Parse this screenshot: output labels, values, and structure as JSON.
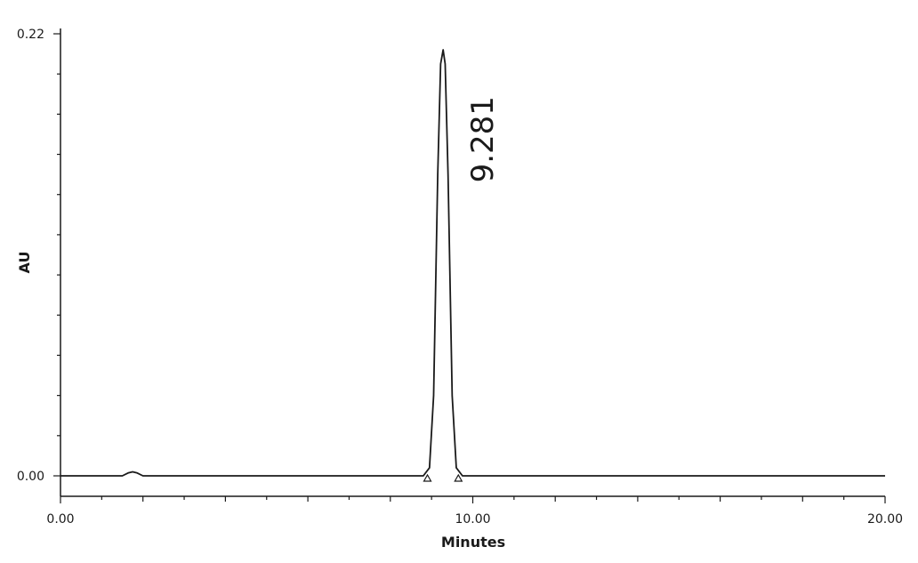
{
  "chart_data": {
    "type": "line",
    "title": "",
    "xlabel": "Minutes",
    "ylabel": "AU",
    "xlim": [
      0,
      20
    ],
    "ylim": [
      0,
      0.22
    ],
    "x_ticks": [
      "0.00",
      "10.00",
      "20.00"
    ],
    "y_ticks": [
      "0.00",
      "0.22"
    ],
    "grid": false,
    "series": [
      {
        "x": [
          0,
          1.5,
          1.65,
          1.75,
          1.85,
          2.0,
          8.8,
          8.95,
          9.05,
          9.15,
          9.22,
          9.281,
          9.33,
          9.4,
          9.5,
          9.6,
          9.75,
          20.0
        ],
        "y": [
          0,
          0,
          0.0015,
          0.002,
          0.0015,
          0,
          0,
          0.004,
          0.04,
          0.15,
          0.205,
          0.212,
          0.205,
          0.15,
          0.04,
          0.004,
          0,
          0
        ]
      }
    ],
    "peak_markers": [
      8.9,
      9.65
    ],
    "annotations": [
      {
        "text": "9.281",
        "x": 9.281,
        "y": 0.212
      }
    ]
  }
}
